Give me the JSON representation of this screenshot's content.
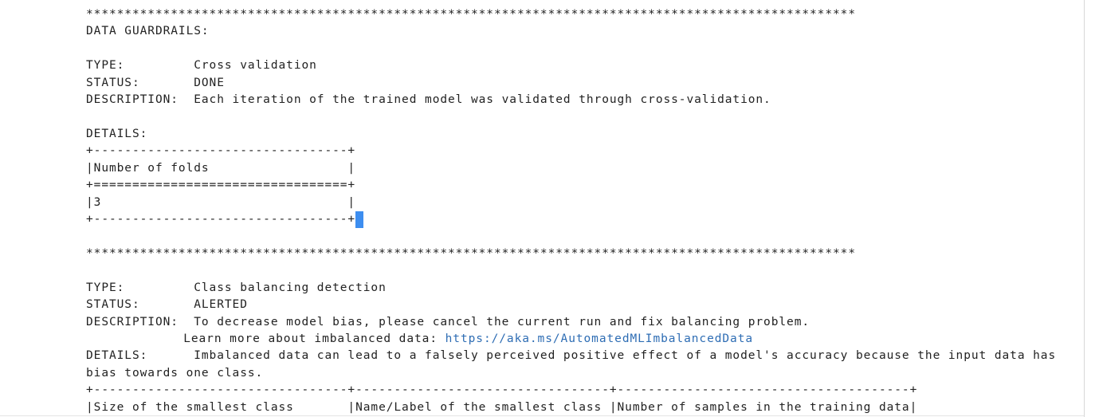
{
  "separator": "****************************************************************************************************",
  "heading": "DATA GUARDRAILS:",
  "check1": {
    "type": "TYPE:         Cross validation",
    "status": "STATUS:       DONE",
    "description": "DESCRIPTION:  Each iteration of the trained model was validated through cross-validation.",
    "details_label": "DETAILS:",
    "table": [
      "+---------------------------------+",
      "|Number of folds                  |",
      "+=================================+",
      "|3                                |",
      "+---------------------------------+"
    ]
  },
  "check2": {
    "type": "TYPE:         Class balancing detection",
    "status": "STATUS:       ALERTED",
    "description": "DESCRIPTION:  To decrease model bias, please cancel the current run and fix balancing problem.",
    "learn_more": "Learn more about imbalanced data: ",
    "link": "https://aka.ms/AutomatedMLImbalancedData",
    "details": "DETAILS:      Imbalanced data can lead to a falsely perceived positive effect of a model's accuracy because the input data has",
    "details_cont": "bias towards one class.",
    "table": [
      "+---------------------------------+---------------------------------+--------------------------------------+",
      "|Size of the smallest class       |Name/Label of the smallest class |Number of samples in the training data|"
    ]
  }
}
